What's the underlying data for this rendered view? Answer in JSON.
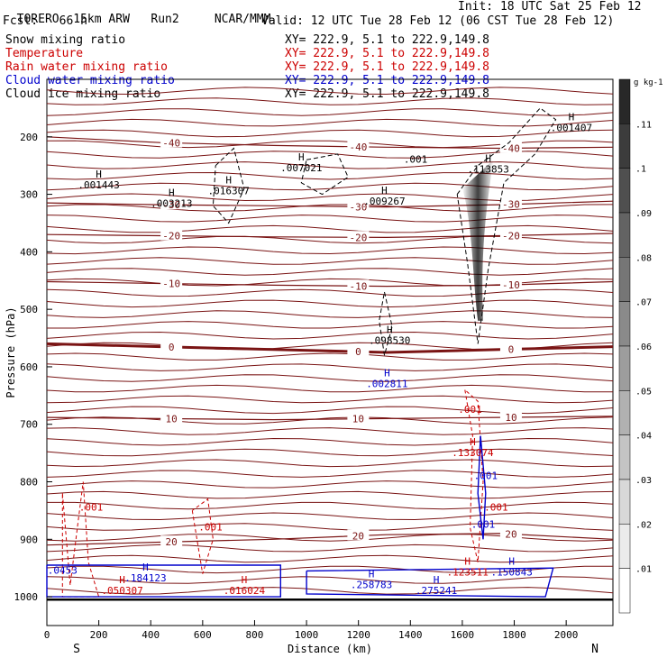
{
  "header": {
    "model": "TORERO",
    "resolution": "15km ARW",
    "run": "Run2",
    "org": "NCAR/MMM",
    "init": "Init: 18 UTC Sat 25 Feb 12",
    "fcst": "Fcst:",
    "fcst_value": "66 h",
    "valid": "Valid: 12 UTC Tue 28 Feb 12 (06 CST Tue 28 Feb 12)"
  },
  "fields": [
    {
      "name": "Snow mixing ratio",
      "color": "#000000",
      "xy": "XY= 222.9,   5.1 to 222.9,149.8"
    },
    {
      "name": "Temperature",
      "color": "#cc0000",
      "xy": "XY= 222.9,   5.1 to 222.9,149.8"
    },
    {
      "name": "Rain water mixing ratio",
      "color": "#cc0000",
      "xy": "XY= 222.9,   5.1 to 222.9,149.8"
    },
    {
      "name": "Cloud water mixing ratio",
      "color": "#0000cc",
      "xy": "XY= 222.9,   5.1 to 222.9,149.8"
    },
    {
      "name": "Cloud ice mixing ratio",
      "color": "#000000",
      "xy": "XY= 222.9,   5.1 to 222.9,149.8"
    }
  ],
  "chart_data": {
    "type": "contour-cross-section",
    "xlabel": "Distance (km)",
    "ylabel": "Pressure (hPa)",
    "xlim": [
      0,
      2180
    ],
    "ylim": [
      1050,
      100
    ],
    "x_ticks": [
      "0",
      "200",
      "400",
      "600",
      "800",
      "1000",
      "1200",
      "1400",
      "1600",
      "1800",
      "2000"
    ],
    "y_ticks": [
      "200",
      "300",
      "400",
      "500",
      "600",
      "700",
      "800",
      "900",
      "1000"
    ],
    "x_end_labels": {
      "left": "S",
      "right": "N"
    },
    "colorbar": {
      "unit": "g kg-1",
      "ticks": [
        ".11",
        ".1",
        ".09",
        ".08",
        ".07",
        ".06",
        ".05",
        ".04",
        ".03",
        ".02",
        ".01"
      ],
      "min": 0.01,
      "max": 0.12
    },
    "temperature_contours": [
      {
        "label": "-40",
        "pressure": [
          200,
          210,
          215,
          218,
          220,
          218
        ]
      },
      {
        "label": "-30",
        "pressure": [
          315,
          318,
          320,
          322,
          318,
          312
        ]
      },
      {
        "label": "-20",
        "pressure": [
          370,
          372,
          374,
          375,
          372,
          368
        ]
      },
      {
        "label": "-10",
        "pressure": [
          452,
          455,
          458,
          460,
          458,
          452
        ]
      },
      {
        "label": "0",
        "pressure": [
          560,
          565,
          570,
          575,
          570,
          565
        ]
      },
      {
        "label": "10",
        "pressure": [
          688,
          690,
          692,
          690,
          688,
          686
        ]
      },
      {
        "label": "20",
        "pressure": [
          910,
          905,
          900,
          892,
          890,
          900
        ]
      }
    ],
    "annotations": [
      {
        "x": 200,
        "p": 290,
        "text": ".001443",
        "marker": "H",
        "color": "#000000"
      },
      {
        "x": 480,
        "p": 322,
        "text": ".003213",
        "marker": "H",
        "color": "#000000"
      },
      {
        "x": 700,
        "p": 300,
        "text": ".016307",
        "marker": "H",
        "color": "#000000"
      },
      {
        "x": 980,
        "p": 260,
        "text": ".007021",
        "marker": "H",
        "color": "#000000"
      },
      {
        "x": 1300,
        "p": 318,
        "text": ".009267",
        "marker": "H",
        "color": "#000000"
      },
      {
        "x": 1700,
        "p": 262,
        "text": ".113853",
        "marker": "H",
        "color": "#000000"
      },
      {
        "x": 2020,
        "p": 190,
        "text": ".001407",
        "marker": "H",
        "color": "#000000"
      },
      {
        "x": 1320,
        "p": 560,
        "text": ".098530",
        "marker": "H",
        "color": "#000000"
      },
      {
        "x": 1310,
        "p": 635,
        "text": ".002811",
        "marker": "H",
        "color": "#0000cc"
      },
      {
        "x": 1640,
        "p": 755,
        "text": ".133074",
        "marker": "H",
        "color": "#cc0000"
      },
      {
        "x": 1620,
        "p": 963,
        "text": ".123511",
        "marker": "H",
        "color": "#cc0000"
      },
      {
        "x": 1790,
        "p": 963,
        "text": ".150843",
        "marker": "H",
        "color": "#0000cc"
      },
      {
        "x": 380,
        "p": 973,
        "text": ".184123",
        "marker": "H",
        "color": "#0000cc"
      },
      {
        "x": 290,
        "p": 995,
        "text": ".050307",
        "marker": "H",
        "color": "#cc0000"
      },
      {
        "x": 760,
        "p": 995,
        "text": ".016024",
        "marker": "H",
        "color": "#cc0000"
      },
      {
        "x": 1250,
        "p": 985,
        "text": ".258783",
        "marker": "H",
        "color": "#0000cc"
      },
      {
        "x": 1500,
        "p": 995,
        "text": ".275241",
        "marker": "H",
        "color": "#0000cc"
      }
    ],
    "small_labels": [
      {
        "x": 170,
        "p": 850,
        "text": ".001",
        "color": "#cc0000"
      },
      {
        "x": 630,
        "p": 885,
        "text": ".001",
        "color": "#cc0000"
      },
      {
        "x": 1630,
        "p": 680,
        "text": ".001",
        "color": "#cc0000"
      },
      {
        "x": 1690,
        "p": 795,
        "text": ".001",
        "color": "#0000cc"
      },
      {
        "x": 1730,
        "p": 850,
        "text": ".001",
        "color": "#cc0000"
      },
      {
        "x": 1680,
        "p": 880,
        "text": ".001",
        "color": "#0000cc"
      },
      {
        "x": 1420,
        "p": 245,
        "text": ".001",
        "color": "#000000"
      },
      {
        "x": 60,
        "p": 960,
        "text": ".0453",
        "color": "#0000cc"
      }
    ]
  }
}
